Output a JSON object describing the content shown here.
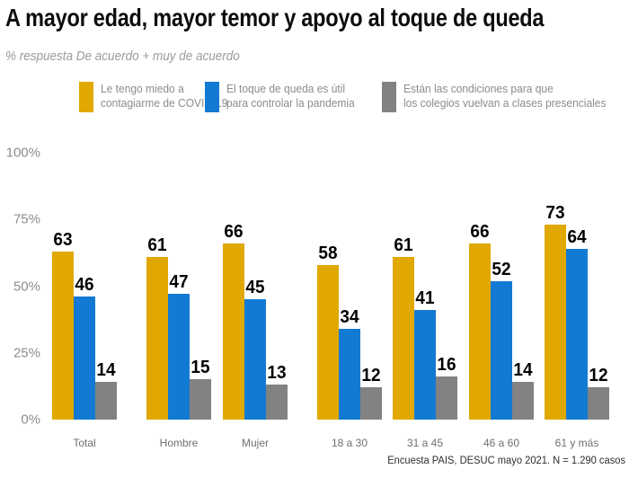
{
  "header": {
    "title": "A mayor edad, mayor temor y apoyo al toque de queda",
    "subtitle": "% respuesta De acuerdo + muy de acuerdo"
  },
  "legend": {
    "items": [
      {
        "lines": [
          "Le tengo miedo a",
          "contagiarme de COVID-19"
        ],
        "color": "#E0A800"
      },
      {
        "lines": [
          "El toque de queda es útil",
          "para controlar la pandemia"
        ],
        "color": "#137AD3"
      },
      {
        "lines": [
          "Están las condiciones para que",
          "los colegios vuelvan a clases presenciales"
        ],
        "color": "#828282"
      }
    ]
  },
  "colors": {
    "gold": "#E0A800",
    "blue": "#137AD3",
    "gray": "#828282",
    "axis_text": "#8c8c8c",
    "value_label": "#000000"
  },
  "chart_data": {
    "type": "bar",
    "title": "A mayor edad, mayor temor y apoyo al toque de queda",
    "subtitle": "% respuesta De acuerdo + muy de acuerdo",
    "categories": [
      "Total",
      "Hombre",
      "Mujer",
      "18 a 30",
      "31 a 45",
      "46 a 60",
      "61 y más"
    ],
    "series": [
      {
        "name": "Le tengo miedo a contagiarme de COVID-19",
        "color": "#E0A800",
        "values": [
          63,
          61,
          66,
          58,
          61,
          66,
          73
        ]
      },
      {
        "name": "El toque de queda es útil para controlar la pandemia",
        "color": "#137AD3",
        "values": [
          46,
          47,
          45,
          34,
          41,
          52,
          64
        ]
      },
      {
        "name": "Están las condiciones para que los colegios vuelvan a clases presenciales",
        "color": "#828282",
        "values": [
          14,
          15,
          13,
          12,
          16,
          14,
          12
        ]
      }
    ],
    "xlabel": "",
    "ylabel": "%",
    "ylim": [
      0,
      100
    ],
    "y_ticks": [
      "100%",
      "75%",
      "50%",
      "25%",
      "0%"
    ],
    "y_tick_values": [
      100,
      75,
      50,
      25,
      0
    ],
    "grid": false,
    "legend_position": "top",
    "bar_value_labels_shown": true
  },
  "footer": {
    "source": "Encuesta PAIS, DESUC mayo 2021. N = 1.290 casos"
  }
}
